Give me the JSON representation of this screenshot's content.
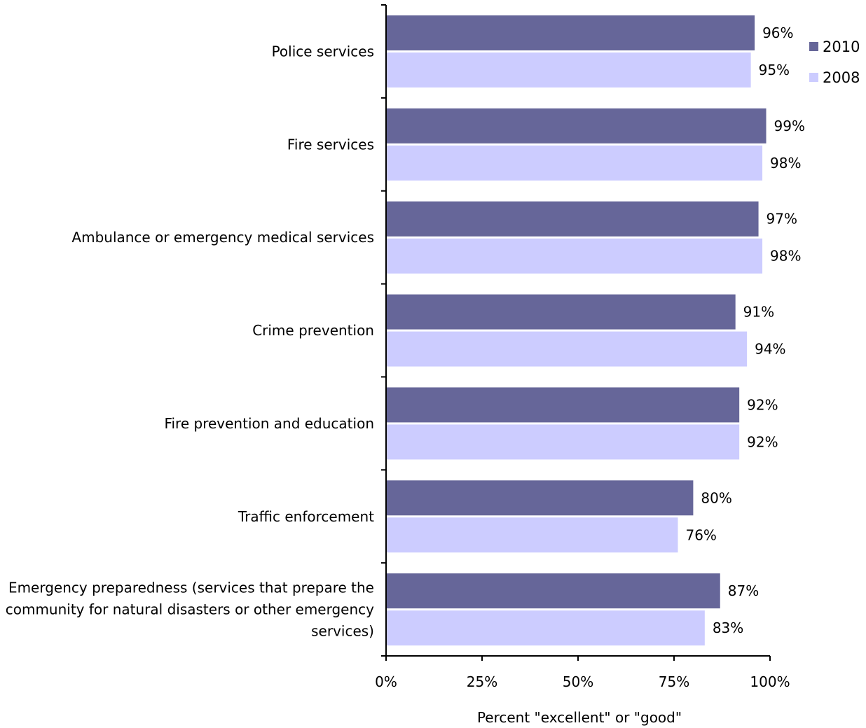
{
  "chart_data": {
    "type": "bar",
    "orientation": "horizontal",
    "categories": [
      [
        "Police services"
      ],
      [
        "Fire services"
      ],
      [
        "Ambulance or emergency medical services"
      ],
      [
        "Crime prevention"
      ],
      [
        "Fire prevention and education"
      ],
      [
        "Traffic enforcement"
      ],
      [
        "Emergency preparedness (services that prepare the",
        "community for natural disasters or other emergency",
        "services)"
      ]
    ],
    "series": [
      {
        "name": "2010",
        "color": "#666699",
        "values": [
          96,
          99,
          97,
          91,
          92,
          80,
          87
        ],
        "labels": [
          "96%",
          "99%",
          "97%",
          "91%",
          "92%",
          "80%",
          "87%"
        ]
      },
      {
        "name": "2008",
        "color": "#ccccff",
        "values": [
          95,
          98,
          98,
          94,
          92,
          76,
          83
        ],
        "labels": [
          "95%",
          "98%",
          "98%",
          "94%",
          "92%",
          "76%",
          "83%"
        ]
      }
    ],
    "xlim": [
      0,
      100
    ],
    "xticks": [
      0,
      25,
      50,
      75,
      100
    ],
    "xtick_labels": [
      "0%",
      "25%",
      "50%",
      "75%",
      "100%"
    ],
    "xlabel": "Percent \"excellent\" or \"good\"",
    "ylabel": "",
    "title": "",
    "grid": false,
    "legend_position": "top-right"
  }
}
